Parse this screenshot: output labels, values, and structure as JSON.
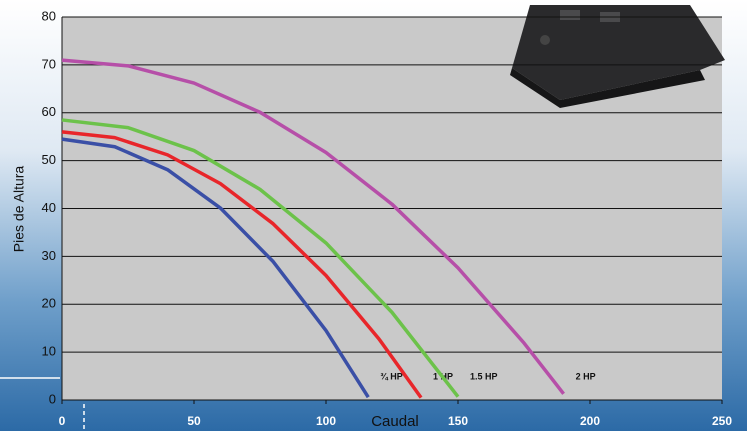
{
  "chart_data": {
    "type": "line",
    "x_label": "Caudal",
    "y_label": "Pies de Altura",
    "xlim": [
      0,
      250
    ],
    "xticks": [
      0,
      50,
      100,
      150,
      200,
      250
    ],
    "ylim": [
      0,
      80
    ],
    "yticks": [
      0,
      10,
      20,
      30,
      40,
      50,
      60,
      70,
      80
    ],
    "grid": true,
    "series": [
      {
        "name": "¾ HP",
        "color": "#3a4fa6",
        "x": [
          0,
          20,
          40,
          60,
          80,
          100,
          116
        ],
        "values": [
          54.5,
          52.9,
          48.1,
          40.1,
          28.9,
          14.5,
          0.6
        ]
      },
      {
        "name": "1 HP",
        "color": "#e8262a",
        "x": [
          0,
          20,
          40,
          60,
          80,
          100,
          120,
          136
        ],
        "values": [
          56,
          54.8,
          51.2,
          45.2,
          36.8,
          26,
          12.8,
          0.5
        ]
      },
      {
        "name": "1.5 HP",
        "color": "#6cc24a",
        "x": [
          0,
          25,
          50,
          75,
          100,
          125,
          150
        ],
        "values": [
          58.5,
          56.9,
          52.1,
          44,
          32.8,
          18.3,
          0.7
        ]
      },
      {
        "name": "2 HP",
        "color": "#b64fa8",
        "x": [
          0,
          25,
          50,
          75,
          100,
          125,
          150,
          175,
          190
        ],
        "values": [
          71,
          69.8,
          66.2,
          60.1,
          51.7,
          40.9,
          27.6,
          11.9,
          1.3
        ]
      }
    ]
  }
}
